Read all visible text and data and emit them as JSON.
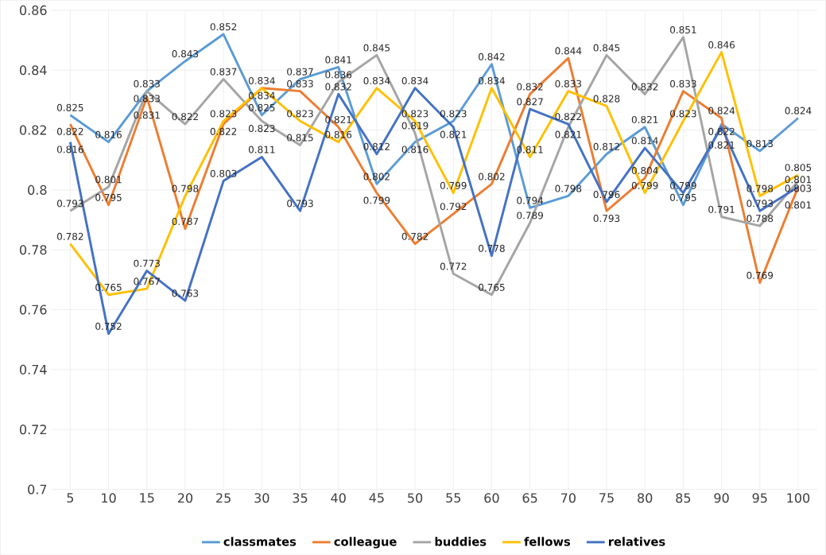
{
  "chart_data": {
    "type": "line",
    "categories": [
      "5",
      "10",
      "15",
      "20",
      "25",
      "30",
      "35",
      "40",
      "45",
      "50",
      "55",
      "60",
      "65",
      "70",
      "75",
      "80",
      "85",
      "90",
      "95",
      "100"
    ],
    "series": [
      {
        "name": "classmates",
        "color": "#5b9bd5",
        "values": [
          0.825,
          0.816,
          0.833,
          0.843,
          0.852,
          0.825,
          0.837,
          0.841,
          0.802,
          0.816,
          0.823,
          0.842,
          0.794,
          0.798,
          0.812,
          0.821,
          0.795,
          0.822,
          0.813,
          0.824
        ]
      },
      {
        "name": "colleague",
        "color": "#ed7d31",
        "values": [
          0.822,
          0.795,
          0.831,
          0.787,
          0.822,
          0.834,
          0.833,
          0.821,
          0.799,
          0.782,
          0.792,
          0.802,
          0.832,
          0.844,
          0.793,
          0.804,
          0.833,
          0.824,
          0.769,
          0.801
        ]
      },
      {
        "name": "buddies",
        "color": "#a5a5a5",
        "values": [
          0.793,
          0.801,
          0.833,
          0.822,
          0.837,
          0.823,
          0.815,
          0.836,
          0.845,
          0.819,
          0.772,
          0.765,
          0.789,
          0.821,
          0.845,
          0.832,
          0.851,
          0.791,
          0.788,
          0.803
        ]
      },
      {
        "name": "fellows",
        "color": "#ffc000",
        "values": [
          0.782,
          0.765,
          0.767,
          0.798,
          0.823,
          0.834,
          0.823,
          0.816,
          0.834,
          0.823,
          0.799,
          0.834,
          0.811,
          0.833,
          0.828,
          0.799,
          0.823,
          0.846,
          0.798,
          0.805
        ]
      },
      {
        "name": "relatives",
        "color": "#4472c4",
        "values": [
          0.816,
          0.752,
          0.773,
          0.763,
          0.803,
          0.811,
          0.793,
          0.832,
          0.812,
          0.834,
          0.821,
          0.778,
          0.827,
          0.822,
          0.796,
          0.814,
          0.799,
          0.821,
          0.793,
          0.801
        ]
      }
    ],
    "ylim": [
      0.7,
      0.86
    ],
    "yticks": [
      0.7,
      0.72,
      0.74,
      0.76,
      0.78,
      0.8,
      0.82,
      0.84,
      0.86
    ],
    "grid": true,
    "legend": "bottom",
    "data_labels": true,
    "line_style": "solid"
  }
}
